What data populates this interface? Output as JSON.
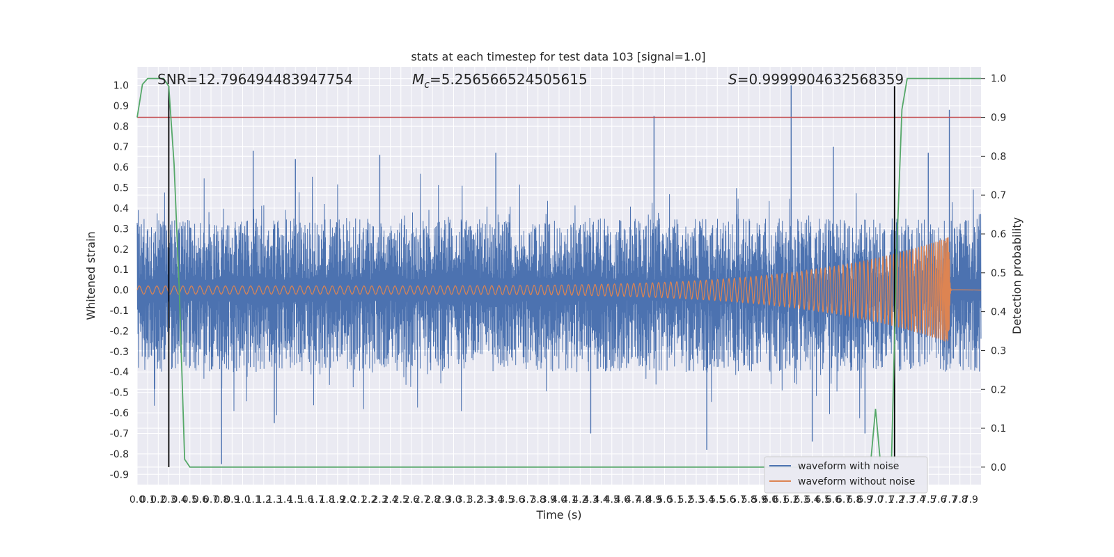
{
  "chart_data": {
    "type": "line",
    "title": "stats at each timestep for test data 103 [signal=1.0]",
    "xlabel": "Time (s)",
    "ylabel": "Whitened strain",
    "ylabel_right": "Detection probability",
    "xlim": [
      0,
      8
    ],
    "ylim": [
      -0.95,
      1.09
    ],
    "ylim_right": [
      -0.045,
      1.03
    ],
    "x_ticks": [
      "0.0",
      "0.1",
      "0.2",
      "0.3",
      "0.4",
      "0.5",
      "0.6",
      "0.7",
      "0.8",
      "0.9",
      "1.0",
      "1.1",
      "1.2",
      "1.3",
      "1.4",
      "1.5",
      "1.6",
      "1.7",
      "1.8",
      "1.9",
      "2.0",
      "2.1",
      "2.2",
      "2.3",
      "2.4",
      "2.5",
      "2.6",
      "2.7",
      "2.8",
      "2.9",
      "3.0",
      "3.1",
      "3.2",
      "3.3",
      "3.4",
      "3.5",
      "3.6",
      "3.7",
      "3.8",
      "3.9",
      "4.0",
      "4.1",
      "4.2",
      "4.3",
      "4.4",
      "4.5",
      "4.6",
      "4.7",
      "4.8",
      "4.9",
      "5.0",
      "5.1",
      "5.2",
      "5.3",
      "5.4",
      "5.5",
      "5.6",
      "5.7",
      "5.8",
      "5.9",
      "6.0",
      "6.1",
      "6.2",
      "6.3",
      "6.4",
      "6.5",
      "6.6",
      "6.7",
      "6.8",
      "6.9",
      "7.0",
      "7.1",
      "7.2",
      "7.3",
      "7.4",
      "7.5",
      "7.6",
      "7.7",
      "7.8",
      "7.9"
    ],
    "y_ticks": [
      "1.0",
      "0.9",
      "0.8",
      "0.7",
      "0.6",
      "0.5",
      "0.4",
      "0.3",
      "0.2",
      "0.1",
      "0.0",
      "-0.1",
      "-0.2",
      "-0.3",
      "-0.4",
      "-0.5",
      "-0.6",
      "-0.7",
      "-0.8",
      "-0.9"
    ],
    "y_ticks_right": [
      "1.0",
      "0.9",
      "0.8",
      "0.7",
      "0.6",
      "0.5",
      "0.4",
      "0.3",
      "0.2",
      "0.1",
      "0.0"
    ],
    "annotations": {
      "snr": "SNR=12.796494483947754",
      "mc_symbol": "M",
      "mc_sub": "c",
      "mc_value": "=5.256566524505615",
      "s_symbol": "S",
      "s_value": "=0.9999904632568359"
    },
    "series": [
      {
        "name": "waveform with noise",
        "color": "#4c72b0",
        "noise_envelope": {
          "upper_typical": 0.35,
          "lower_typical": -0.4,
          "peak_max": 1.0,
          "peak_min": -0.85
        },
        "spikes": [
          [
            1.1,
            0.68
          ],
          [
            1.5,
            0.64
          ],
          [
            2.3,
            0.66
          ],
          [
            3.4,
            0.67
          ],
          [
            4.9,
            0.85
          ],
          [
            6.2,
            1.0
          ],
          [
            6.6,
            0.7
          ],
          [
            7.5,
            0.67
          ],
          [
            7.7,
            0.88
          ],
          [
            0.8,
            -0.85
          ],
          [
            1.3,
            -0.65
          ],
          [
            4.3,
            -0.7
          ],
          [
            5.4,
            -0.78
          ],
          [
            6.4,
            -0.74
          ],
          [
            6.9,
            -0.7
          ]
        ]
      },
      {
        "name": "waveform without noise",
        "color": "#dd8452",
        "chirp": {
          "start_amplitude": 0.02,
          "peak_amplitude": 0.26,
          "merger_time": 7.7,
          "end_time": 7.72
        }
      }
    ],
    "detection_probability": {
      "color": "#55a868",
      "points": [
        [
          0.0,
          0.9
        ],
        [
          0.05,
          0.985
        ],
        [
          0.1,
          1.0
        ],
        [
          0.25,
          1.0
        ],
        [
          0.3,
          0.98
        ],
        [
          0.35,
          0.78
        ],
        [
          0.4,
          0.45
        ],
        [
          0.45,
          0.02
        ],
        [
          0.5,
          0.0
        ],
        [
          6.95,
          0.0
        ],
        [
          7.0,
          0.15
        ],
        [
          7.05,
          0.0
        ],
        [
          7.15,
          0.0
        ],
        [
          7.2,
          0.55
        ],
        [
          7.25,
          0.92
        ],
        [
          7.3,
          1.0
        ],
        [
          8.0,
          1.0
        ]
      ]
    },
    "threshold": {
      "value": 0.9,
      "axis": "right",
      "color": "#c44e52"
    },
    "vertical_markers": [
      0.3,
      7.18
    ],
    "legend_position": "lower-right",
    "grid": true
  }
}
